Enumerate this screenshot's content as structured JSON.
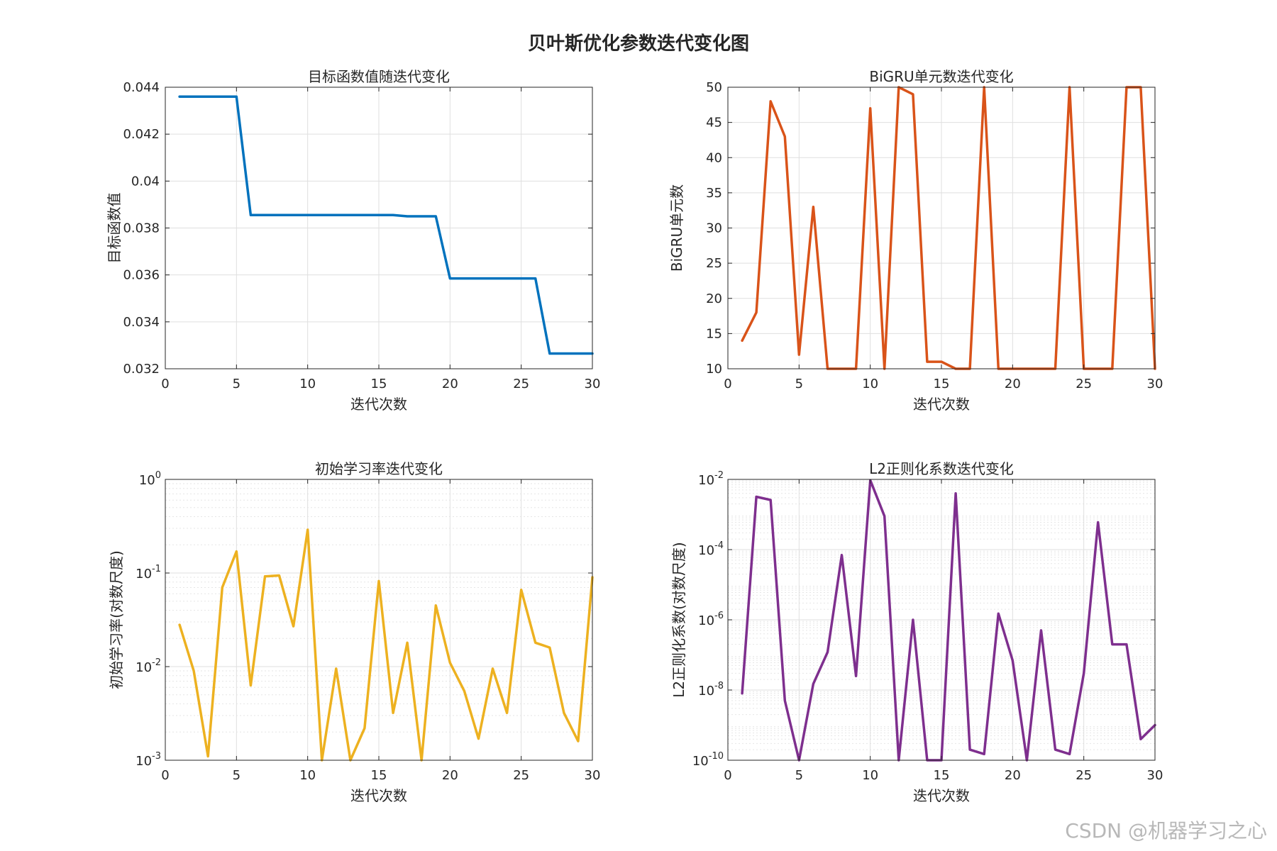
{
  "figure_title": "贝叶斯优化参数迭代变化图",
  "watermark": "CSDN @机器学习之心",
  "chart_data": [
    {
      "type": "line",
      "title": "目标函数值随迭代变化",
      "xlabel": "迭代次数",
      "ylabel": "目标函数值",
      "color": "#0072BD",
      "yscale": "linear",
      "xlim": [
        0,
        30
      ],
      "ylim": [
        0.032,
        0.044
      ],
      "x_ticks": [
        0,
        5,
        10,
        15,
        20,
        25,
        30
      ],
      "y_ticks": [
        0.032,
        0.034,
        0.036,
        0.038,
        0.04,
        0.042,
        0.044
      ],
      "y_tick_labels": [
        "0.032",
        "0.034",
        "0.036",
        "0.038",
        "0.04",
        "0.042",
        "0.044"
      ],
      "grid": true,
      "x": [
        1,
        2,
        3,
        4,
        5,
        6,
        7,
        8,
        9,
        10,
        11,
        12,
        13,
        14,
        15,
        16,
        17,
        18,
        19,
        20,
        21,
        22,
        23,
        24,
        25,
        26,
        27,
        28,
        29,
        30
      ],
      "y": [
        0.0436,
        0.0436,
        0.0436,
        0.0436,
        0.0436,
        0.03855,
        0.03855,
        0.03855,
        0.03855,
        0.03855,
        0.03855,
        0.03855,
        0.03855,
        0.03855,
        0.03855,
        0.03855,
        0.0385,
        0.0385,
        0.0385,
        0.03585,
        0.03585,
        0.03585,
        0.03585,
        0.03585,
        0.03585,
        0.03585,
        0.03265,
        0.03265,
        0.03265,
        0.03265
      ]
    },
    {
      "type": "line",
      "title": "BiGRU单元数迭代变化",
      "xlabel": "迭代次数",
      "ylabel": "BiGRU单元数",
      "color": "#D95319",
      "yscale": "linear",
      "xlim": [
        0,
        30
      ],
      "ylim": [
        10,
        50
      ],
      "x_ticks": [
        0,
        5,
        10,
        15,
        20,
        25,
        30
      ],
      "y_ticks": [
        10,
        15,
        20,
        25,
        30,
        35,
        40,
        45,
        50
      ],
      "y_tick_labels": [
        "10",
        "15",
        "20",
        "25",
        "30",
        "35",
        "40",
        "45",
        "50"
      ],
      "grid": true,
      "x": [
        1,
        2,
        3,
        4,
        5,
        6,
        7,
        8,
        9,
        10,
        11,
        12,
        13,
        14,
        15,
        16,
        17,
        18,
        19,
        20,
        21,
        22,
        23,
        24,
        25,
        26,
        27,
        28,
        29,
        30
      ],
      "y": [
        14,
        18,
        48,
        43,
        12,
        33,
        10,
        10,
        10,
        47,
        10,
        50,
        49,
        11,
        11,
        10,
        10,
        50,
        10,
        10,
        10,
        10,
        10,
        50,
        10,
        10,
        10,
        50,
        50,
        10
      ]
    },
    {
      "type": "line",
      "title": "初始学习率迭代变化",
      "xlabel": "迭代次数",
      "ylabel": "初始学习率(对数尺度)",
      "color": "#EDB120",
      "yscale": "log",
      "xlim": [
        0,
        30
      ],
      "ylim": [
        0.001,
        1
      ],
      "x_ticks": [
        0,
        5,
        10,
        15,
        20,
        25,
        30
      ],
      "y_tick_exponents": [
        -3,
        -2,
        -1,
        0
      ],
      "y_tick_base": "10",
      "grid": true,
      "x": [
        1,
        2,
        3,
        4,
        5,
        6,
        7,
        8,
        9,
        10,
        11,
        12,
        13,
        14,
        15,
        16,
        17,
        18,
        19,
        20,
        21,
        22,
        23,
        24,
        25,
        26,
        27,
        28,
        29,
        30
      ],
      "y": [
        0.028,
        0.009,
        0.0011,
        0.07,
        0.17,
        0.0063,
        0.092,
        0.094,
        0.027,
        0.29,
        0.001,
        0.0095,
        0.001,
        0.0022,
        0.082,
        0.0032,
        0.018,
        0.001,
        0.045,
        0.011,
        0.0055,
        0.0017,
        0.0095,
        0.0032,
        0.066,
        0.018,
        0.016,
        0.0032,
        0.0016,
        0.09
      ]
    },
    {
      "type": "line",
      "title": "L2正则化系数迭代变化",
      "xlabel": "迭代次数",
      "ylabel": "L2正则化系数(对数尺度)",
      "color": "#7E2F8E",
      "yscale": "log",
      "xlim": [
        0,
        30
      ],
      "ylim": [
        1e-10,
        0.01
      ],
      "x_ticks": [
        0,
        5,
        10,
        15,
        20,
        25,
        30
      ],
      "y_tick_exponents": [
        -10,
        -8,
        -6,
        -4,
        -2
      ],
      "y_tick_base": "10",
      "grid": true,
      "x": [
        1,
        2,
        3,
        4,
        5,
        6,
        7,
        8,
        9,
        10,
        11,
        12,
        13,
        14,
        15,
        16,
        17,
        18,
        19,
        20,
        21,
        22,
        23,
        24,
        25,
        26,
        27,
        28,
        29,
        30
      ],
      "y": [
        8e-09,
        0.0032,
        0.0026,
        5e-09,
        1e-10,
        1.5e-08,
        1.2e-07,
        7e-05,
        2.5e-08,
        0.0095,
        0.0009,
        1e-10,
        1e-06,
        1e-10,
        1e-10,
        0.004,
        2e-10,
        1.5e-10,
        1.5e-06,
        7e-08,
        1e-10,
        5e-07,
        2e-10,
        1.5e-10,
        3e-08,
        0.0006,
        2e-07,
        2e-07,
        4e-10,
        1e-09
      ]
    }
  ]
}
